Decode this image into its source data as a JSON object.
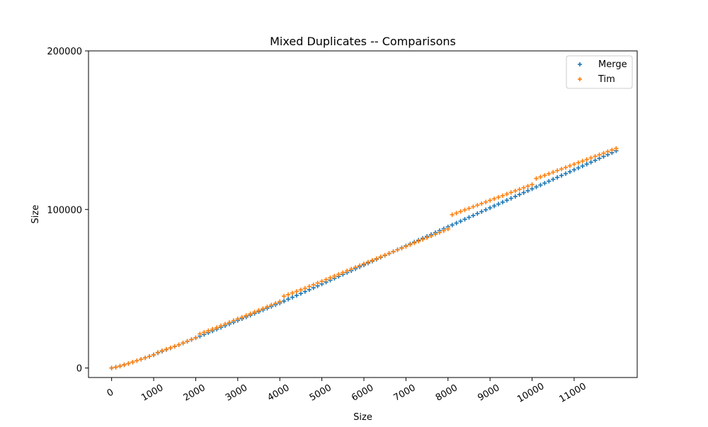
{
  "chart_data": {
    "type": "scatter",
    "title": "Mixed Duplicates -- Comparisons",
    "xlabel": "Size",
    "ylabel": "Size",
    "xlim": [
      -550,
      12500
    ],
    "ylim": [
      -6000,
      200000
    ],
    "x_ticks": [
      0,
      1000,
      2000,
      3000,
      4000,
      5000,
      6000,
      7000,
      8000,
      9000,
      10000,
      11000
    ],
    "x_tick_labels": [
      "0",
      "1000",
      "2000",
      "3000",
      "4000",
      "5000",
      "6000",
      "7000",
      "8000",
      "9000",
      "10000",
      "11000"
    ],
    "y_ticks": [
      0,
      100000,
      200000
    ],
    "y_tick_labels": [
      "0",
      "100000",
      "200000"
    ],
    "x_tick_rotation_deg": -30,
    "grid": false,
    "legend_position": "top-right",
    "marker": "plus",
    "x": [
      0,
      100,
      200,
      300,
      400,
      500,
      600,
      700,
      800,
      900,
      1000,
      1100,
      1200,
      1300,
      1400,
      1500,
      1600,
      1700,
      1800,
      1900,
      2000,
      2100,
      2200,
      2300,
      2400,
      2500,
      2600,
      2700,
      2800,
      2900,
      3000,
      3100,
      3200,
      3300,
      3400,
      3500,
      3600,
      3700,
      3800,
      3900,
      4000,
      4100,
      4200,
      4300,
      4400,
      4500,
      4600,
      4700,
      4800,
      4900,
      5000,
      5100,
      5200,
      5300,
      5400,
      5500,
      5600,
      5700,
      5800,
      5900,
      6000,
      6100,
      6200,
      6300,
      6400,
      6500,
      6600,
      6700,
      6800,
      6900,
      7000,
      7100,
      7200,
      7300,
      7400,
      7500,
      7600,
      7700,
      7800,
      7900,
      8000,
      8100,
      8200,
      8300,
      8400,
      8500,
      8600,
      8700,
      8800,
      8900,
      9000,
      9100,
      9200,
      9300,
      9400,
      9500,
      9600,
      9700,
      9800,
      9900,
      10000,
      10100,
      10200,
      10300,
      10400,
      10500,
      10600,
      10700,
      10800,
      10900,
      11000,
      11100,
      11200,
      11300,
      11400,
      11500,
      11600,
      11700,
      11800,
      11900,
      12000
    ],
    "series": [
      {
        "name": "Merge",
        "color": "#1f77b4",
        "values": [
          0,
          500,
          1200,
          2000,
          2800,
          3700,
          4600,
          5500,
          6400,
          7300,
          8300,
          9600,
          10600,
          11600,
          12600,
          13600,
          14600,
          15700,
          16800,
          17900,
          19000,
          20100,
          21200,
          22300,
          23400,
          24500,
          25600,
          26700,
          27800,
          28900,
          30000,
          31100,
          32200,
          33300,
          34400,
          35500,
          36600,
          37700,
          38800,
          39900,
          41000,
          42200,
          43400,
          44600,
          45800,
          47000,
          48200,
          49400,
          50600,
          51800,
          53000,
          54200,
          55400,
          56600,
          57800,
          59000,
          60200,
          61400,
          62600,
          63800,
          65000,
          66200,
          67400,
          68600,
          69800,
          71000,
          72200,
          73400,
          74600,
          75800,
          77000,
          78200,
          79400,
          80600,
          81800,
          83000,
          84200,
          85400,
          86600,
          87800,
          89000,
          90200,
          91400,
          92600,
          93800,
          95000,
          96200,
          97400,
          98600,
          99800,
          101000,
          102200,
          103400,
          104600,
          105800,
          107000,
          108200,
          109400,
          110600,
          111800,
          113000,
          114200,
          115400,
          116600,
          117800,
          119000,
          120200,
          121400,
          122600,
          123800,
          125000,
          126200,
          127400,
          128600,
          129800,
          131000,
          132200,
          133400,
          134600,
          135800,
          137000
        ]
      },
      {
        "name": "Tim",
        "color": "#ff7f0e",
        "values": [
          0,
          500,
          1200,
          2000,
          2800,
          3700,
          4600,
          5500,
          6400,
          7300,
          8300,
          9800,
          10900,
          11800,
          12700,
          13700,
          14700,
          15800,
          16900,
          18000,
          19100,
          21500,
          22500,
          23500,
          24500,
          25500,
          26600,
          27700,
          28800,
          29900,
          31000,
          32000,
          33100,
          34200,
          35300,
          36400,
          37500,
          38600,
          39700,
          40800,
          41900,
          45300,
          46300,
          47300,
          48300,
          49300,
          50300,
          51400,
          52500,
          53600,
          54700,
          55800,
          56900,
          58000,
          59100,
          60200,
          61300,
          62400,
          63500,
          64600,
          65700,
          66800,
          67900,
          69000,
          70100,
          71200,
          72300,
          73400,
          74500,
          75600,
          76700,
          77800,
          78900,
          80000,
          81100,
          82200,
          83300,
          84400,
          85500,
          86600,
          87700,
          96700,
          97700,
          98700,
          99700,
          100700,
          101700,
          102700,
          103700,
          104700,
          105700,
          106700,
          107700,
          108700,
          109700,
          110700,
          111700,
          112700,
          113700,
          114700,
          115700,
          119500,
          120500,
          121500,
          122500,
          123500,
          124500,
          125500,
          126500,
          127500,
          128500,
          129500,
          130500,
          131500,
          132500,
          133500,
          134500,
          135500,
          136500,
          137500,
          138500
        ]
      }
    ]
  }
}
